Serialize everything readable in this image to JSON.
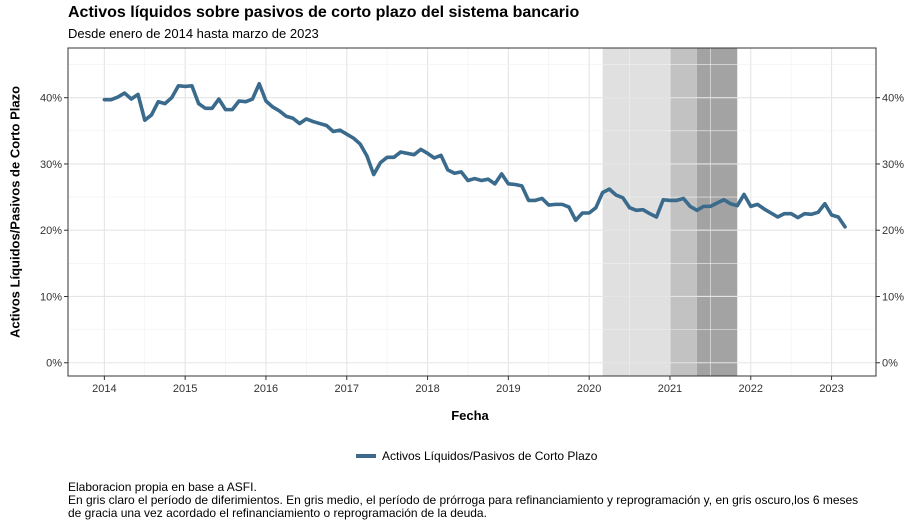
{
  "chart_data": {
    "type": "line",
    "title": "Activos líquidos sobre pasivos de corto plazo del sistema bancario",
    "subtitle": "Desde enero de 2014 hasta marzo de 2023",
    "xlabel": "Fecha",
    "ylabel": "Activos Líquidos/Pasivos de Corto Plazo",
    "xlim": [
      2013.55,
      2023.55
    ],
    "ylim": [
      -0.02,
      0.475
    ],
    "x_ticks": [
      {
        "value": 2014,
        "label": "2014"
      },
      {
        "value": 2015,
        "label": "2015"
      },
      {
        "value": 2016,
        "label": "2016"
      },
      {
        "value": 2017,
        "label": "2017"
      },
      {
        "value": 2018,
        "label": "2018"
      },
      {
        "value": 2019,
        "label": "2019"
      },
      {
        "value": 2020,
        "label": "2020"
      },
      {
        "value": 2021,
        "label": "2021"
      },
      {
        "value": 2022,
        "label": "2022"
      },
      {
        "value": 2023,
        "label": "2023"
      }
    ],
    "y_ticks": [
      {
        "value": 0.0,
        "label": "0%"
      },
      {
        "value": 0.1,
        "label": "10%"
      },
      {
        "value": 0.2,
        "label": "20%"
      },
      {
        "value": 0.3,
        "label": "30%"
      },
      {
        "value": 0.4,
        "label": "40%"
      }
    ],
    "grid": true,
    "legend_position": "bottom",
    "shaded_periods": [
      {
        "start": 2020.167,
        "end": 2021.0,
        "color": "#e0e0e0"
      },
      {
        "start": 2021.0,
        "end": 2021.333,
        "color": "#c2c2c2"
      },
      {
        "start": 2021.333,
        "end": 2021.833,
        "color": "#a3a3a3"
      }
    ],
    "series": [
      {
        "name": "Activos Líquidos/Pasivos de Corto Plazo",
        "color": "#3a6a8c",
        "x": [
          "2014-01",
          "2014-02",
          "2014-03",
          "2014-04",
          "2014-05",
          "2014-06",
          "2014-07",
          "2014-08",
          "2014-09",
          "2014-10",
          "2014-11",
          "2014-12",
          "2015-01",
          "2015-02",
          "2015-03",
          "2015-04",
          "2015-05",
          "2015-06",
          "2015-07",
          "2015-08",
          "2015-09",
          "2015-10",
          "2015-11",
          "2015-12",
          "2016-01",
          "2016-02",
          "2016-03",
          "2016-04",
          "2016-05",
          "2016-06",
          "2016-07",
          "2016-08",
          "2016-09",
          "2016-10",
          "2016-11",
          "2016-12",
          "2017-01",
          "2017-02",
          "2017-03",
          "2017-04",
          "2017-05",
          "2017-06",
          "2017-07",
          "2017-08",
          "2017-09",
          "2017-10",
          "2017-11",
          "2017-12",
          "2018-01",
          "2018-02",
          "2018-03",
          "2018-04",
          "2018-05",
          "2018-06",
          "2018-07",
          "2018-08",
          "2018-09",
          "2018-10",
          "2018-11",
          "2018-12",
          "2019-01",
          "2019-02",
          "2019-03",
          "2019-04",
          "2019-05",
          "2019-06",
          "2019-07",
          "2019-08",
          "2019-09",
          "2019-10",
          "2019-11",
          "2019-12",
          "2020-01",
          "2020-02",
          "2020-03",
          "2020-04",
          "2020-05",
          "2020-06",
          "2020-07",
          "2020-08",
          "2020-09",
          "2020-10",
          "2020-11",
          "2020-12",
          "2021-01",
          "2021-02",
          "2021-03",
          "2021-04",
          "2021-05",
          "2021-06",
          "2021-07",
          "2021-08",
          "2021-09",
          "2021-10",
          "2021-11",
          "2021-12",
          "2022-01",
          "2022-02",
          "2022-03",
          "2022-04",
          "2022-05",
          "2022-06",
          "2022-07",
          "2022-08",
          "2022-09",
          "2022-10",
          "2022-11",
          "2022-12",
          "2023-01",
          "2023-02",
          "2023-03"
        ],
        "values": [
          0.397,
          0.397,
          0.401,
          0.407,
          0.398,
          0.405,
          0.366,
          0.374,
          0.394,
          0.391,
          0.4,
          0.418,
          0.417,
          0.418,
          0.391,
          0.384,
          0.384,
          0.398,
          0.382,
          0.382,
          0.395,
          0.394,
          0.398,
          0.421,
          0.395,
          0.386,
          0.38,
          0.372,
          0.369,
          0.361,
          0.368,
          0.364,
          0.361,
          0.358,
          0.349,
          0.351,
          0.345,
          0.339,
          0.33,
          0.312,
          0.284,
          0.302,
          0.31,
          0.31,
          0.318,
          0.316,
          0.314,
          0.322,
          0.316,
          0.309,
          0.313,
          0.291,
          0.286,
          0.288,
          0.275,
          0.278,
          0.275,
          0.277,
          0.27,
          0.285,
          0.27,
          0.269,
          0.267,
          0.245,
          0.245,
          0.248,
          0.238,
          0.239,
          0.239,
          0.235,
          0.215,
          0.226,
          0.226,
          0.234,
          0.257,
          0.262,
          0.253,
          0.249,
          0.234,
          0.23,
          0.231,
          0.225,
          0.22,
          0.246,
          0.245,
          0.245,
          0.248,
          0.236,
          0.23,
          0.236,
          0.236,
          0.241,
          0.246,
          0.24,
          0.237,
          0.254,
          0.236,
          0.239,
          0.232,
          0.226,
          0.22,
          0.225,
          0.225,
          0.219,
          0.225,
          0.224,
          0.227,
          0.24,
          0.223,
          0.22,
          0.205
        ]
      }
    ]
  },
  "caption": {
    "line1": "Elaboracion propia en base a ASFI.",
    "line2": "En gris claro el período de diferimientos. En gris medio, el período de prórroga para refinanciamiento y reprogramación y, en gris oscuro,los 6 meses",
    "line3": "de gracia una vez acordado el refinanciamiento o reprogramación de la deuda."
  }
}
